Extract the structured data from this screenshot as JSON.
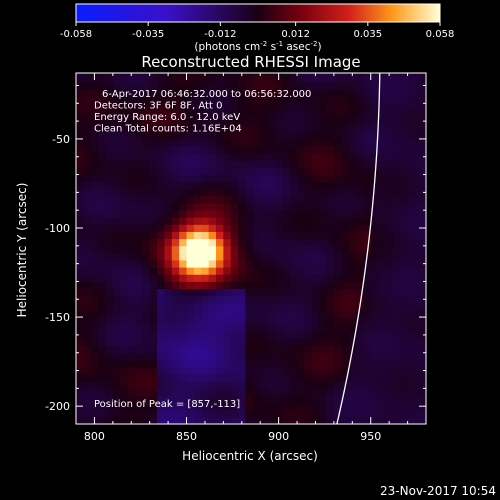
{
  "chart_data": {
    "type": "heatmap",
    "title": "Reconstructed RHESSI Image",
    "xlabel": "Heliocentric X (arcsec)",
    "ylabel": "Heliocentric Y (arcsec)",
    "xlim": [
      790,
      980
    ],
    "ylim": [
      -210,
      -13
    ],
    "xticks": [
      800,
      850,
      900,
      950
    ],
    "yticks": [
      -50,
      -100,
      -150,
      -200
    ],
    "colorbar": {
      "min": -0.058,
      "max": 0.058,
      "ticks": [
        "-0.058",
        "-0.035",
        "-0.012",
        "0.012",
        "0.035",
        "0.058"
      ],
      "label": "(photons cm",
      "label_sup1": "-2",
      "label_mid": " s",
      "label_sup2": "-1",
      "label_mid2": " asec",
      "label_sup3": "-2",
      "label_end": ")"
    },
    "peak": {
      "x": 857,
      "y": -113,
      "value": 0.058
    },
    "annotations": [
      "6-Apr-2017 06:46:32.000 to 06:56:32.000",
      "Detectors: 3F 6F 8F, Att 0",
      "Energy Range: 6.0 - 12.0 keV",
      "Clean    Total counts: 1.16E+04"
    ],
    "peak_label": "Position of Peak = [857,-113]",
    "timestamp": "23-Nov-2017 10:54",
    "colors": {
      "background": "#000000",
      "limb": "#ffffff"
    }
  }
}
